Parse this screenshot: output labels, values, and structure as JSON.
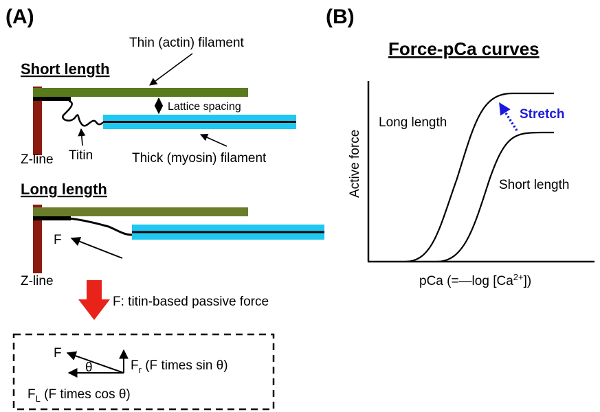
{
  "panel_a": {
    "label": "(A)",
    "short_heading": "Short length",
    "long_heading": "Long length",
    "thin_filament": "Thin (actin) filament",
    "lattice_spacing": "Lattice spacing",
    "titin": "Titin",
    "thick_filament": "Thick (myosin) filament",
    "zline_short": "Z-line",
    "zline_long": "Z-line",
    "force_symbol": "F",
    "caption": "F: titin-based passive force",
    "box": {
      "f": "F",
      "theta": "θ",
      "fr_symbol": "F",
      "fr_sub": "r",
      "fr_text": " (F times sin θ)",
      "fl_symbol": "F",
      "fl_sub": "L",
      "fl_text": " (F times cos θ)"
    }
  },
  "panel_b": {
    "label": "(B)",
    "title": "Force-pCa curves",
    "ylabel": "Active force",
    "xlabel_pre": "pCa (=—log [Ca",
    "xlabel_sup": "2+",
    "xlabel_post": "])",
    "long_label": "Long length",
    "short_label": "Short length",
    "stretch_label": "Stretch"
  },
  "colors": {
    "actin": "#5a7a1e",
    "actin_long": "#6b7d2a",
    "myosin": "#1ec8f0",
    "zline": "#8b1a10",
    "arrow_red": "#e8231a",
    "stretch_blue": "#1a1adb"
  },
  "icons": {
    "down_arrow": "red-down-arrow-icon",
    "stretch_arrow": "dotted-stretch-arrow-icon"
  }
}
